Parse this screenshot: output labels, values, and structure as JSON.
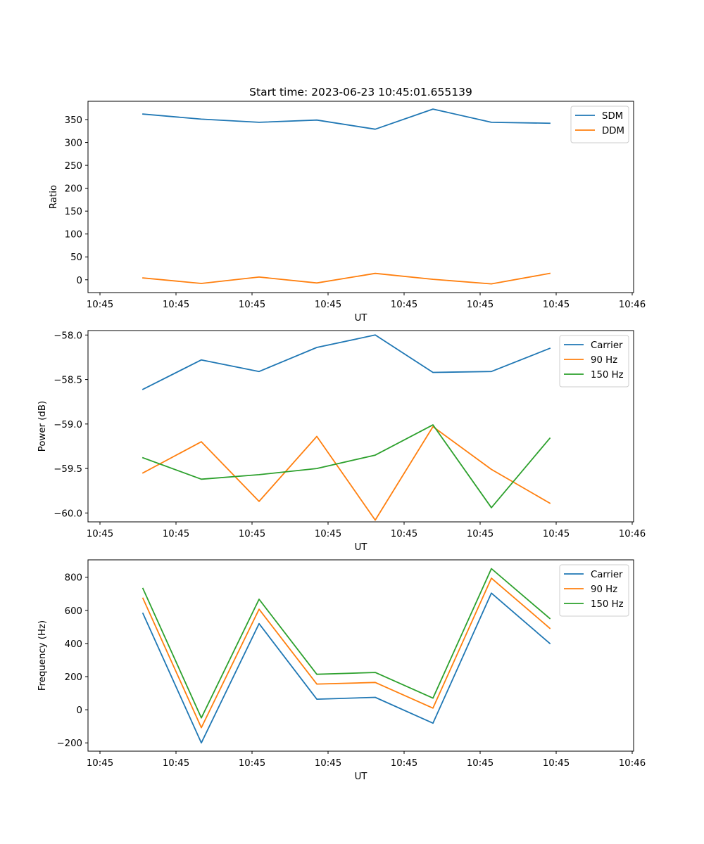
{
  "chart_data": [
    {
      "type": "line",
      "title": "Start time: 2023-06-23 10:45:01.655139",
      "xlabel": "UT",
      "ylabel": "Ratio",
      "x_tick_labels": [
        "10:45",
        "10:45",
        "10:45",
        "10:45",
        "10:45",
        "10:45",
        "10:45",
        "10:46"
      ],
      "y_ticks": [
        0,
        50,
        100,
        150,
        200,
        250,
        300,
        350
      ],
      "ylim": [
        -28,
        390
      ],
      "legend_position": "top-right",
      "series": [
        {
          "name": "SDM",
          "color": "#1f77b4",
          "values": [
            362,
            351,
            344,
            349,
            329,
            373,
            344,
            342
          ]
        },
        {
          "name": "DDM",
          "color": "#ff7f0e",
          "values": [
            4,
            -8,
            6,
            -7,
            14,
            1,
            -9,
            14
          ]
        }
      ]
    },
    {
      "type": "line",
      "title": "",
      "xlabel": "UT",
      "ylabel": "Power (dB)",
      "x_tick_labels": [
        "10:45",
        "10:45",
        "10:45",
        "10:45",
        "10:45",
        "10:45",
        "10:45",
        "10:46"
      ],
      "y_ticks": [
        "-60.0",
        "-59.5",
        "-59.0",
        "-58.5",
        "-58.0"
      ],
      "y_tick_values": [
        -60.0,
        -59.5,
        -59.0,
        -58.5,
        -58.0
      ],
      "ylim": [
        -60.1,
        -57.95
      ],
      "legend_position": "top-right",
      "series": [
        {
          "name": "Carrier",
          "color": "#1f77b4",
          "values": [
            -58.61,
            -58.28,
            -58.41,
            -58.14,
            -58.0,
            -58.42,
            -58.41,
            -58.15
          ]
        },
        {
          "name": "90 Hz",
          "color": "#ff7f0e",
          "values": [
            -59.55,
            -59.2,
            -59.87,
            -59.14,
            -60.08,
            -59.03,
            -59.51,
            -59.89
          ]
        },
        {
          "name": "150 Hz",
          "color": "#2ca02c",
          "values": [
            -59.38,
            -59.62,
            -59.57,
            -59.5,
            -59.35,
            -59.01,
            -59.94,
            -59.16
          ]
        }
      ]
    },
    {
      "type": "line",
      "title": "",
      "xlabel": "UT",
      "ylabel": "Frequency (Hz)",
      "x_tick_labels": [
        "10:45",
        "10:45",
        "10:45",
        "10:45",
        "10:45",
        "10:45",
        "10:45",
        "10:46"
      ],
      "y_ticks": [
        -200,
        0,
        200,
        400,
        600,
        800
      ],
      "ylim": [
        -250,
        905
      ],
      "legend_position": "top-right",
      "series": [
        {
          "name": "Carrier",
          "color": "#1f77b4",
          "values": [
            582,
            -200,
            520,
            64,
            75,
            -81,
            704,
            400
          ]
        },
        {
          "name": "90 Hz",
          "color": "#ff7f0e",
          "values": [
            673,
            -108,
            607,
            155,
            165,
            10,
            794,
            492
          ]
        },
        {
          "name": "150 Hz",
          "color": "#2ca02c",
          "values": [
            732,
            -49,
            667,
            214,
            225,
            70,
            852,
            551
          ]
        }
      ]
    }
  ]
}
